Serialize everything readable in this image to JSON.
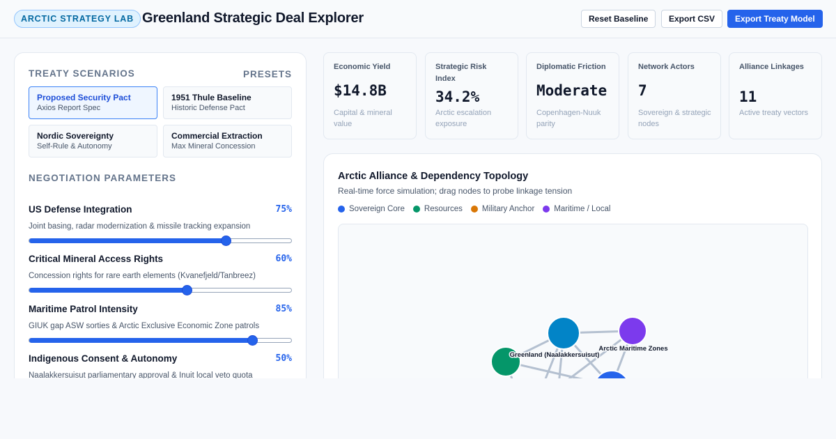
{
  "header": {
    "brand": "ARCTIC STRATEGY LAB",
    "title": "Greenland Strategic Deal Explorer",
    "buttons": [
      "Reset Baseline",
      "Export CSV",
      "Export Treaty Model"
    ]
  },
  "scenarios": {
    "title": "TREATY SCENARIOS",
    "presets_label": "PRESETS",
    "items": [
      {
        "title": "Proposed Security Pact",
        "subtitle": "Axios Report Spec",
        "active": true
      },
      {
        "title": "1951 Thule Baseline",
        "subtitle": "Historic Defense Pact",
        "active": false
      },
      {
        "title": "Nordic Sovereignty",
        "subtitle": "Self-Rule & Autonomy",
        "active": false
      },
      {
        "title": "Commercial Extraction",
        "subtitle": "Max Mineral Concession",
        "active": false
      }
    ]
  },
  "negotiation": {
    "title": "NEGOTIATION PARAMETERS",
    "params": [
      {
        "name": "US Defense Integration",
        "value": "75%",
        "level": 0.75,
        "desc": "Joint basing, radar modernization & missile tracking expansion"
      },
      {
        "name": "Critical Mineral Access Rights",
        "value": "60%",
        "level": 0.6,
        "desc": "Concession rights for rare earth elements (Kvanefjeld/Tanbreez)"
      },
      {
        "name": "Maritime Patrol Intensity",
        "value": "85%",
        "level": 0.85,
        "desc": "GIUK gap ASW sorties & Arctic Exclusive Economic Zone patrols"
      },
      {
        "name": "Indigenous Consent & Autonomy",
        "value": "50%",
        "level": 0.5,
        "desc": "Naalakkersuisut parliamentary approval & Inuit local veto quota"
      }
    ]
  },
  "kpis": [
    {
      "label": "Economic Yield",
      "value": "$14.8B",
      "sub": "Capital & mineral value"
    },
    {
      "label": "Strategic Risk Index",
      "value": "34.2%",
      "sub": "Arctic escalation exposure"
    },
    {
      "label": "Diplomatic Friction",
      "value": "Moderate",
      "sub": "Copenhagen-Nuuk parity"
    },
    {
      "label": "Network Actors",
      "value": "7",
      "sub": "Sovereign & strategic nodes"
    },
    {
      "label": "Alliance Linkages",
      "value": "11",
      "sub": "Active treaty vectors"
    }
  ],
  "network": {
    "title": "Arctic Alliance & Dependency Topology",
    "subtitle": "Real-time force simulation; drag nodes to probe linkage tension",
    "legend": [
      {
        "label": "Sovereign Core",
        "color": "#2563eb"
      },
      {
        "label": "Resources",
        "color": "#059669"
      },
      {
        "label": "Military Anchor",
        "color": "#d97706"
      },
      {
        "label": "Maritime / Local",
        "color": "#7c3aed"
      }
    ],
    "nodes": [
      {
        "label": "Greenland (Naalakkersuisut)",
        "color": "#0284c7"
      },
      {
        "label": "Arctic Maritime Zones",
        "color": "#7c3aed"
      },
      {
        "label": "",
        "color": "#059669"
      },
      {
        "label": "",
        "color": "#2563eb"
      }
    ]
  }
}
